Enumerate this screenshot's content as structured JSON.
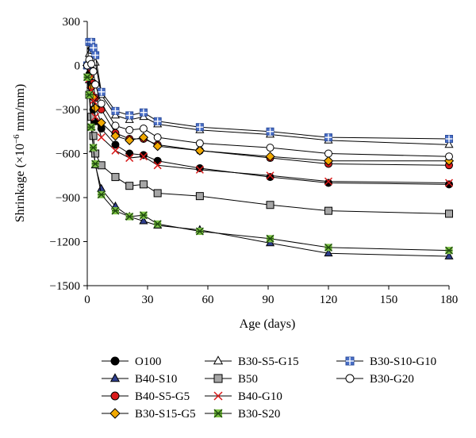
{
  "chart_data": {
    "type": "line",
    "xlabel": "Age (days)",
    "ylabel_main": "Shrinkage (×10",
    "ylabel_exp": "−6",
    "ylabel_tail": " mm/mm)",
    "xlim": [
      0,
      180
    ],
    "ylim": [
      -1500,
      300
    ],
    "x_ticks": [
      0,
      30,
      60,
      90,
      120,
      150,
      180
    ],
    "x_tick_labels": [
      "0",
      "30",
      "60",
      "90",
      "120",
      "150",
      "180"
    ],
    "y_ticks": [
      300,
      0,
      -300,
      -600,
      -900,
      -1200,
      -1500
    ],
    "y_tick_labels": [
      "300",
      "0",
      "−300",
      "−600",
      "−900",
      "−1200",
      "−1500"
    ],
    "grid": false,
    "legend_position": "bottom",
    "series": [
      {
        "name": "O100",
        "marker": "circle",
        "fill": "#000000",
        "x": [
          0,
          1,
          2,
          3,
          4,
          7,
          14,
          21,
          28,
          35,
          56,
          91,
          120,
          180
        ],
        "y": [
          0,
          -60,
          -200,
          -300,
          -380,
          -430,
          -540,
          -600,
          -610,
          -650,
          -700,
          -760,
          -800,
          -810
        ]
      },
      {
        "name": "B40-S10",
        "marker": "triangle",
        "fill": "#2e3e8c",
        "x": [
          0,
          1,
          2,
          3,
          4,
          7,
          14,
          21,
          28,
          35,
          56,
          91,
          120,
          180
        ],
        "y": [
          0,
          -100,
          -420,
          -570,
          -680,
          -840,
          -960,
          -1030,
          -1060,
          -1090,
          -1120,
          -1210,
          -1280,
          -1300
        ]
      },
      {
        "name": "B40-S5-G5",
        "marker": "circle",
        "fill": "#d91a1a",
        "x": [
          0,
          1,
          2,
          3,
          4,
          7,
          14,
          21,
          28,
          35,
          56,
          91,
          120,
          180
        ],
        "y": [
          0,
          30,
          -30,
          -120,
          -220,
          -300,
          -460,
          -500,
          -500,
          -540,
          -580,
          -630,
          -670,
          -680
        ]
      },
      {
        "name": "B30-S15-G5",
        "marker": "diamond",
        "fill": "#f2a900",
        "x": [
          0,
          1,
          2,
          3,
          4,
          7,
          14,
          21,
          28,
          35,
          56,
          91,
          120,
          180
        ],
        "y": [
          0,
          -80,
          -150,
          -220,
          -290,
          -390,
          -480,
          -510,
          -490,
          -550,
          -580,
          -620,
          -650,
          -650
        ]
      },
      {
        "name": "B30-S5-G15",
        "marker": "triangle",
        "fill": "#ffffff",
        "x": [
          0,
          1,
          2,
          3,
          4,
          7,
          14,
          21,
          28,
          35,
          56,
          91,
          120,
          180
        ],
        "y": [
          0,
          80,
          130,
          100,
          20,
          -200,
          -340,
          -370,
          -350,
          -400,
          -440,
          -470,
          -510,
          -540
        ]
      },
      {
        "name": "B50",
        "marker": "square",
        "fill": "#a6a6a6",
        "x": [
          0,
          1,
          2,
          3,
          4,
          7,
          14,
          21,
          28,
          35,
          56,
          91,
          120,
          180
        ],
        "y": [
          0,
          -200,
          -350,
          -480,
          -600,
          -680,
          -760,
          -820,
          -810,
          -870,
          -890,
          -950,
          -990,
          -1010
        ]
      },
      {
        "name": "B40-G10",
        "marker": "x",
        "fill": "#d91a1a",
        "x": [
          0,
          1,
          2,
          3,
          4,
          7,
          14,
          21,
          28,
          35,
          56,
          91,
          120,
          180
        ],
        "y": [
          0,
          -90,
          -170,
          -240,
          -350,
          -490,
          -580,
          -630,
          -620,
          -680,
          -710,
          -750,
          -790,
          -800
        ]
      },
      {
        "name": "B30-S20",
        "marker": "asterisk",
        "fill": "#7cc142",
        "x": [
          0,
          1,
          2,
          3,
          4,
          7,
          14,
          21,
          28,
          35,
          56,
          91,
          120,
          180
        ],
        "y": [
          -80,
          -200,
          -420,
          -560,
          -670,
          -880,
          -990,
          -1030,
          -1020,
          -1080,
          -1130,
          -1180,
          -1240,
          -1260
        ]
      },
      {
        "name": "B30-S10-G10",
        "marker": "square-plus",
        "fill": "#4a6fc7",
        "x": [
          0,
          1,
          2,
          3,
          4,
          7,
          14,
          21,
          28,
          35,
          56,
          91,
          120,
          180
        ],
        "y": [
          0,
          160,
          160,
          120,
          70,
          -180,
          -310,
          -340,
          -320,
          -380,
          -420,
          -450,
          -490,
          -500
        ]
      },
      {
        "name": "B30-G20",
        "marker": "circle",
        "fill": "#ffffff",
        "x": [
          0,
          1,
          2,
          3,
          4,
          7,
          14,
          21,
          28,
          35,
          56,
          91,
          120,
          180
        ],
        "y": [
          0,
          40,
          10,
          -40,
          -130,
          -260,
          -410,
          -440,
          -430,
          -490,
          -530,
          -560,
          -600,
          -620
        ]
      }
    ],
    "legend_order": [
      [
        "O100",
        "B30-S5-G15",
        "B30-S10-G10"
      ],
      [
        "B40-S10",
        "B50",
        "B30-G20"
      ],
      [
        "B40-S5-G5",
        "B40-G10"
      ],
      [
        "B30-S15-G5",
        "B30-S20"
      ]
    ]
  }
}
